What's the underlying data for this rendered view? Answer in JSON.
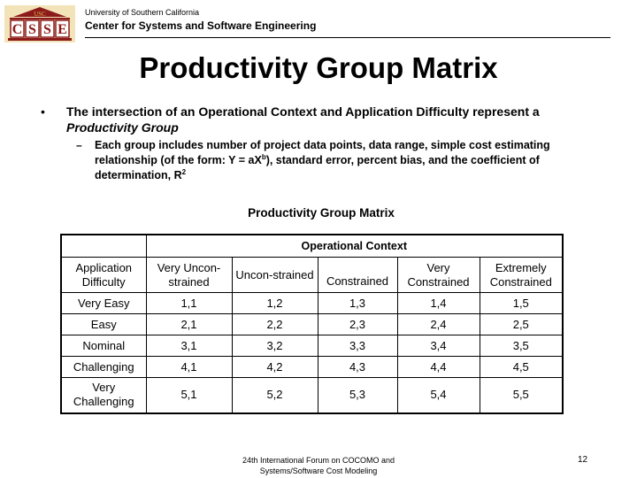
{
  "header": {
    "logo_usc": "USC",
    "logo_letters": [
      "C",
      "S",
      "S",
      "E"
    ],
    "university": "University of Southern California",
    "center": "Center for Systems and Software Engineering"
  },
  "title": "Productivity Group Matrix",
  "bullet1": {
    "marker": "•",
    "text_plain": "The intersection of an Operational Context and Application Difficulty represent a ",
    "text_italic": "Productivity Group"
  },
  "bullet2": {
    "marker": "–",
    "text_before_sup": "Each group includes number of project data points, data range, simple cost estimating relationship (of the form: Y = aX",
    "sup_b": "b",
    "text_after_sup": "), standard error, percent bias, and the coefficient of determination, R",
    "sup_2": "2"
  },
  "table": {
    "caption": "Productivity Group Matrix",
    "group_header": "Operational Context",
    "row_header": "Application Difficulty",
    "columns": [
      "Very Uncon-strained",
      "Uncon-strained",
      "Constrained",
      "Very Constrained",
      "Extremely Constrained"
    ],
    "rows": [
      {
        "label": "Very Easy",
        "cells": [
          "1,1",
          "1,2",
          "1,3",
          "1,4",
          "1,5"
        ]
      },
      {
        "label": "Easy",
        "cells": [
          "2,1",
          "2,2",
          "2,3",
          "2,4",
          "2,5"
        ]
      },
      {
        "label": "Nominal",
        "cells": [
          "3,1",
          "3,2",
          "3,3",
          "3,4",
          "3,5"
        ]
      },
      {
        "label": "Challenging",
        "cells": [
          "4,1",
          "4,2",
          "4,3",
          "4,4",
          "4,5"
        ]
      },
      {
        "label": "Very Challenging",
        "cells": [
          "5,1",
          "5,2",
          "5,3",
          "5,4",
          "5,5"
        ]
      }
    ]
  },
  "footer": {
    "line1": "24th International Forum on COCOMO and",
    "line2": "Systems/Software Cost Modeling",
    "page": "12"
  },
  "colors": {
    "logo_red": "#8b1a1a",
    "logo_gold": "#e8b84a"
  }
}
